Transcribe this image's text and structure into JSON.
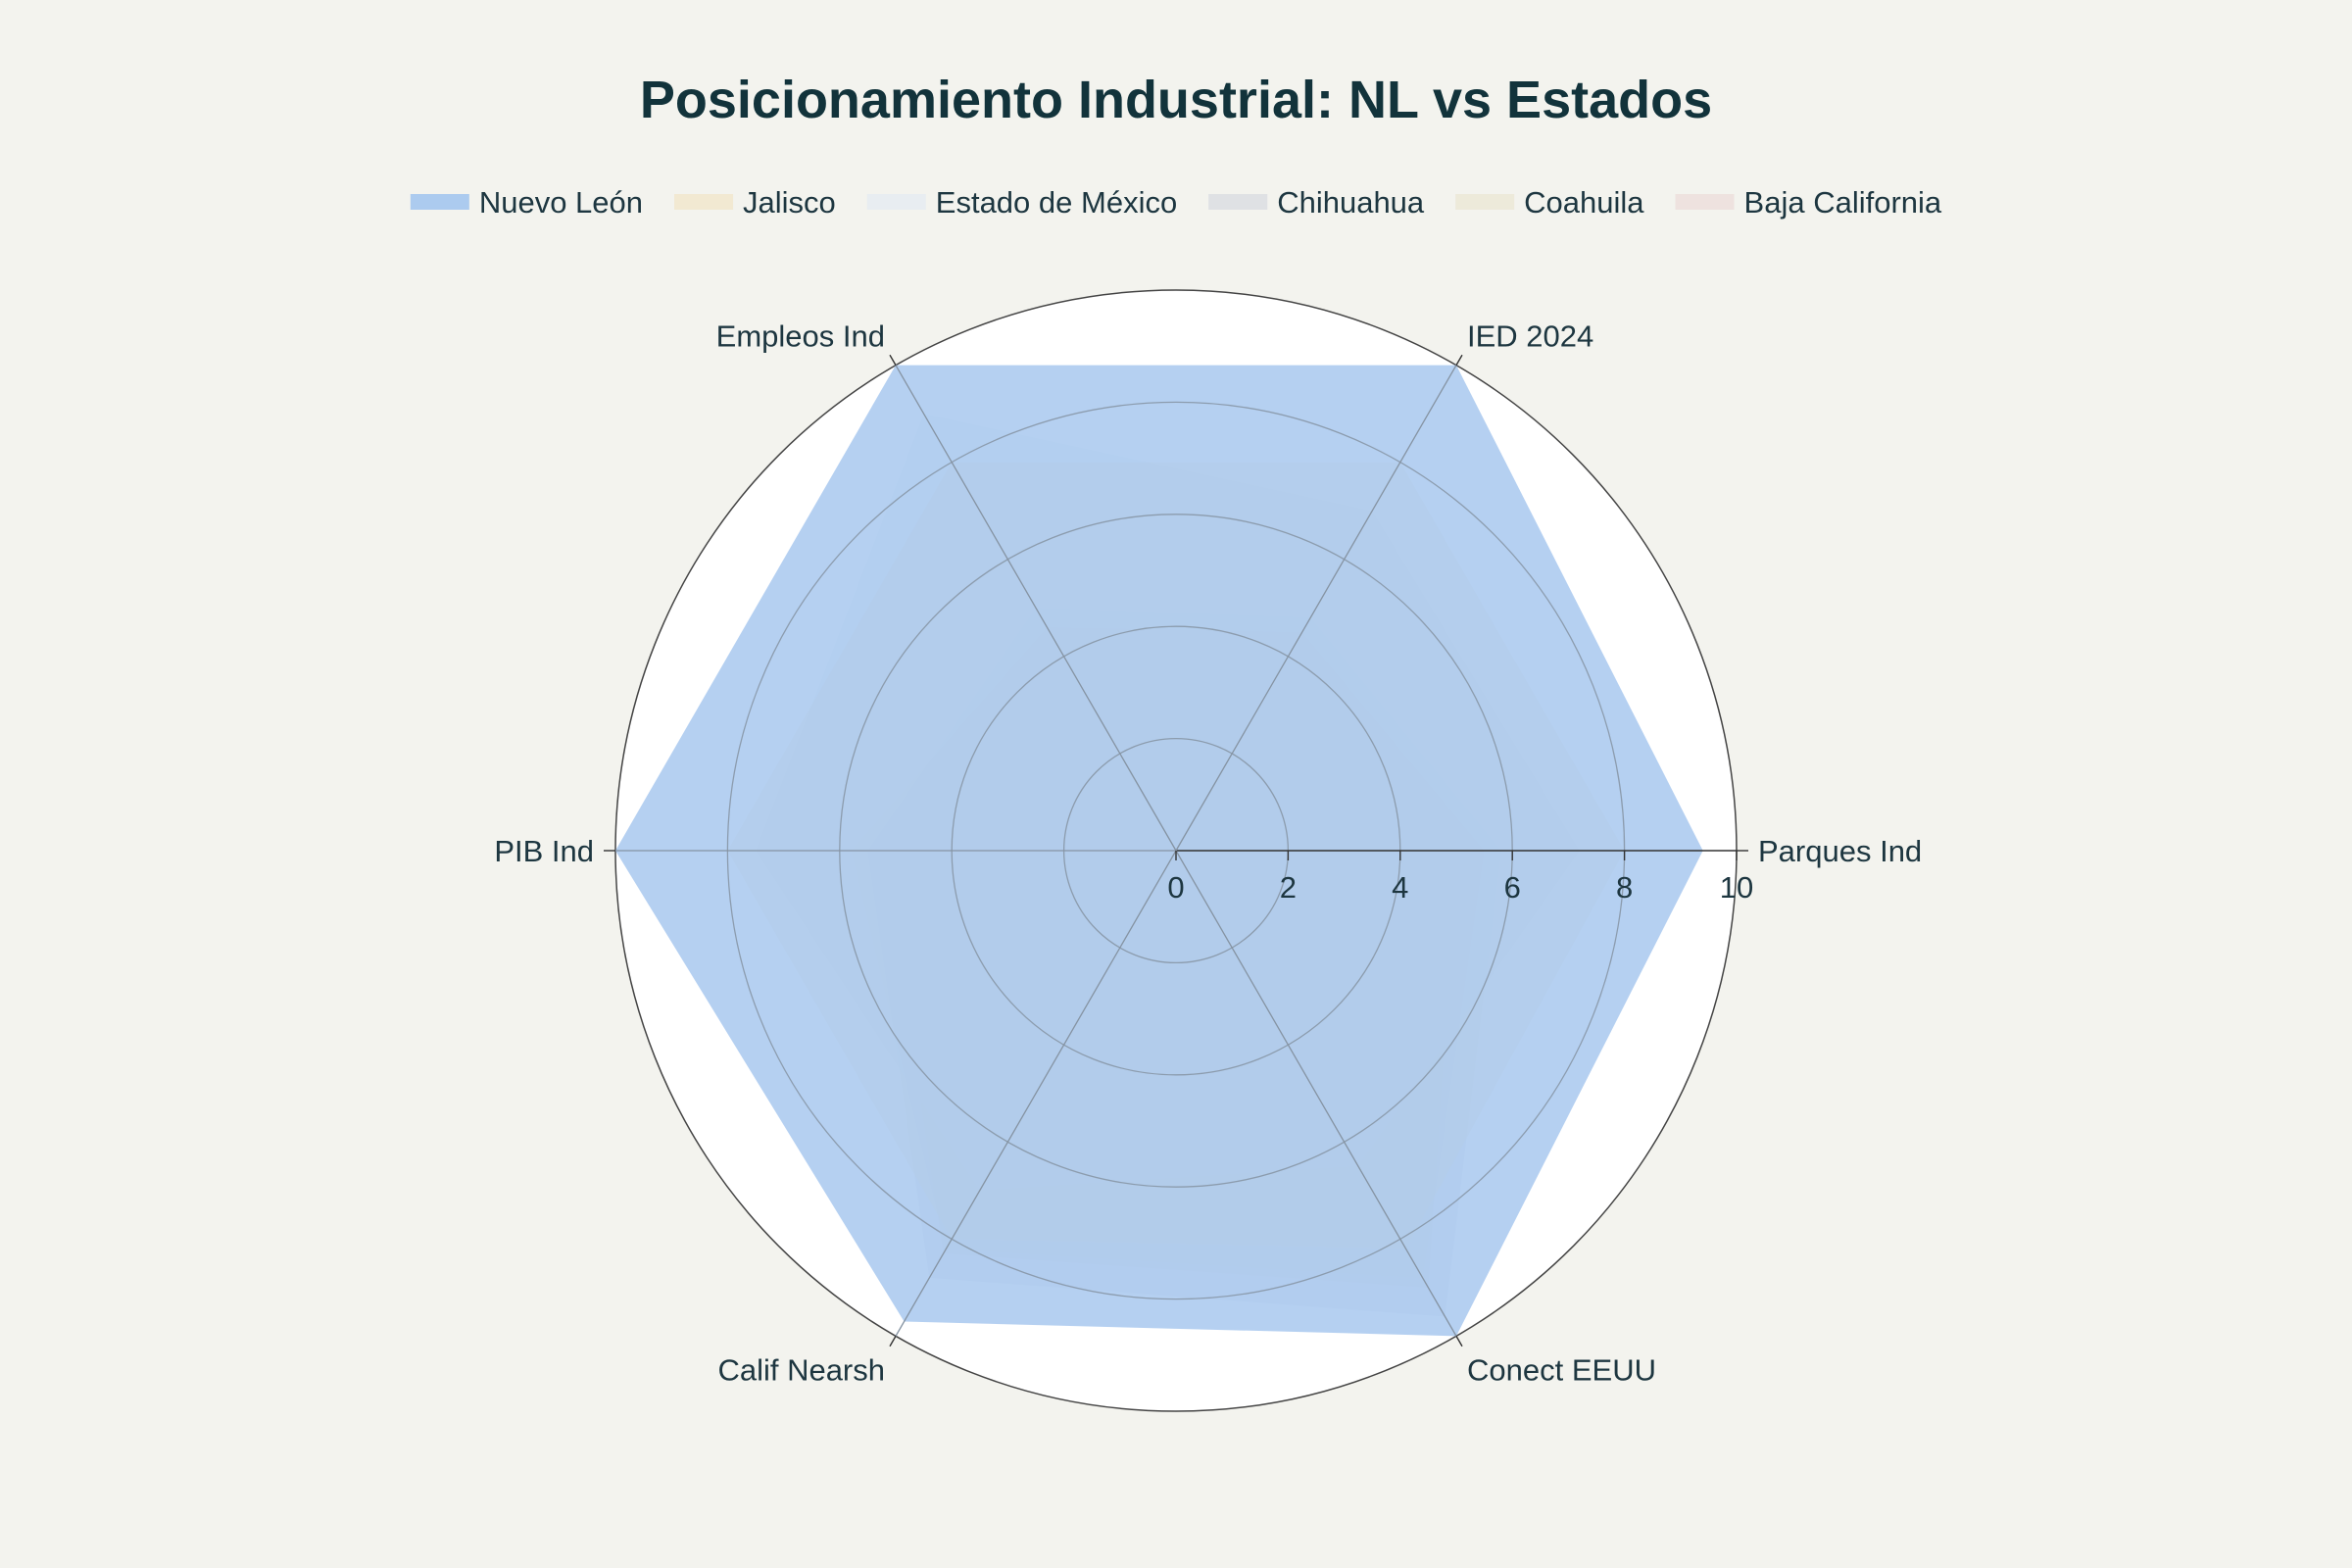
{
  "chart_data": {
    "type": "radar",
    "title": "Posicionamiento Industrial: NL vs Estados",
    "axes": [
      "Parques Ind",
      "IED 2024",
      "Empleos Ind",
      "PIB Ind",
      "Calif Nearsh",
      "Conect EEUU"
    ],
    "radial_range": [
      0,
      10
    ],
    "radial_ticks": [
      "0",
      "2",
      "4",
      "6",
      "8",
      "10"
    ],
    "legend_position": "top",
    "series": [
      {
        "name": "Nuevo León",
        "color": "#a8c8ee",
        "values": [
          9.4,
          10,
          10,
          10,
          9.7,
          10
        ]
      },
      {
        "name": "Jalisco",
        "color": "#f1e4c6",
        "values": [
          8.0,
          8.0,
          8.0,
          8.0,
          8.0,
          8.2
        ]
      },
      {
        "name": "Estado de México",
        "color": "#e3eaf2",
        "values": [
          7.2,
          7.0,
          9.0,
          7.5,
          7.0,
          6.5
        ]
      },
      {
        "name": "Chihuahua",
        "color": "#d5d9df",
        "values": [
          5.8,
          4.8,
          5.0,
          5.5,
          8.8,
          9.6
        ]
      },
      {
        "name": "Coahuila",
        "color": "#e9e6d2",
        "values": [
          5.5,
          4.5,
          4.6,
          5.8,
          8.2,
          8.8
        ]
      },
      {
        "name": "Baja California",
        "color": "#ebdad8",
        "values": [
          5.0,
          4.2,
          4.4,
          5.2,
          8.3,
          9.0
        ]
      }
    ]
  }
}
